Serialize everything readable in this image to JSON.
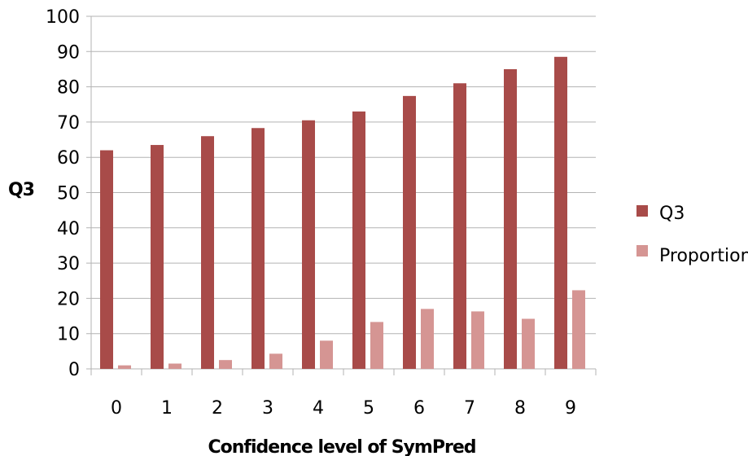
{
  "chart_data": {
    "type": "bar",
    "xlabel": "Confidence level of SymPred",
    "ylabel": "Q3",
    "categories": [
      "0",
      "1",
      "2",
      "3",
      "4",
      "5",
      "6",
      "7",
      "8",
      "9"
    ],
    "ylim": [
      0,
      100
    ],
    "yticks": [
      "0",
      "10",
      "20",
      "30",
      "40",
      "50",
      "60",
      "70",
      "80",
      "90",
      "100"
    ],
    "grid": "horizontal",
    "legend_position": "right",
    "series": [
      {
        "name": "Q3",
        "color": "#a84b49",
        "values": [
          62,
          63.5,
          66,
          68.3,
          70.5,
          73,
          77.4,
          81,
          85,
          88.5
        ]
      },
      {
        "name": "Proportion",
        "color": "#d59593",
        "values": [
          1,
          1.5,
          2.5,
          4.3,
          8,
          13.3,
          17,
          16.3,
          14.2,
          22.3
        ]
      }
    ]
  }
}
